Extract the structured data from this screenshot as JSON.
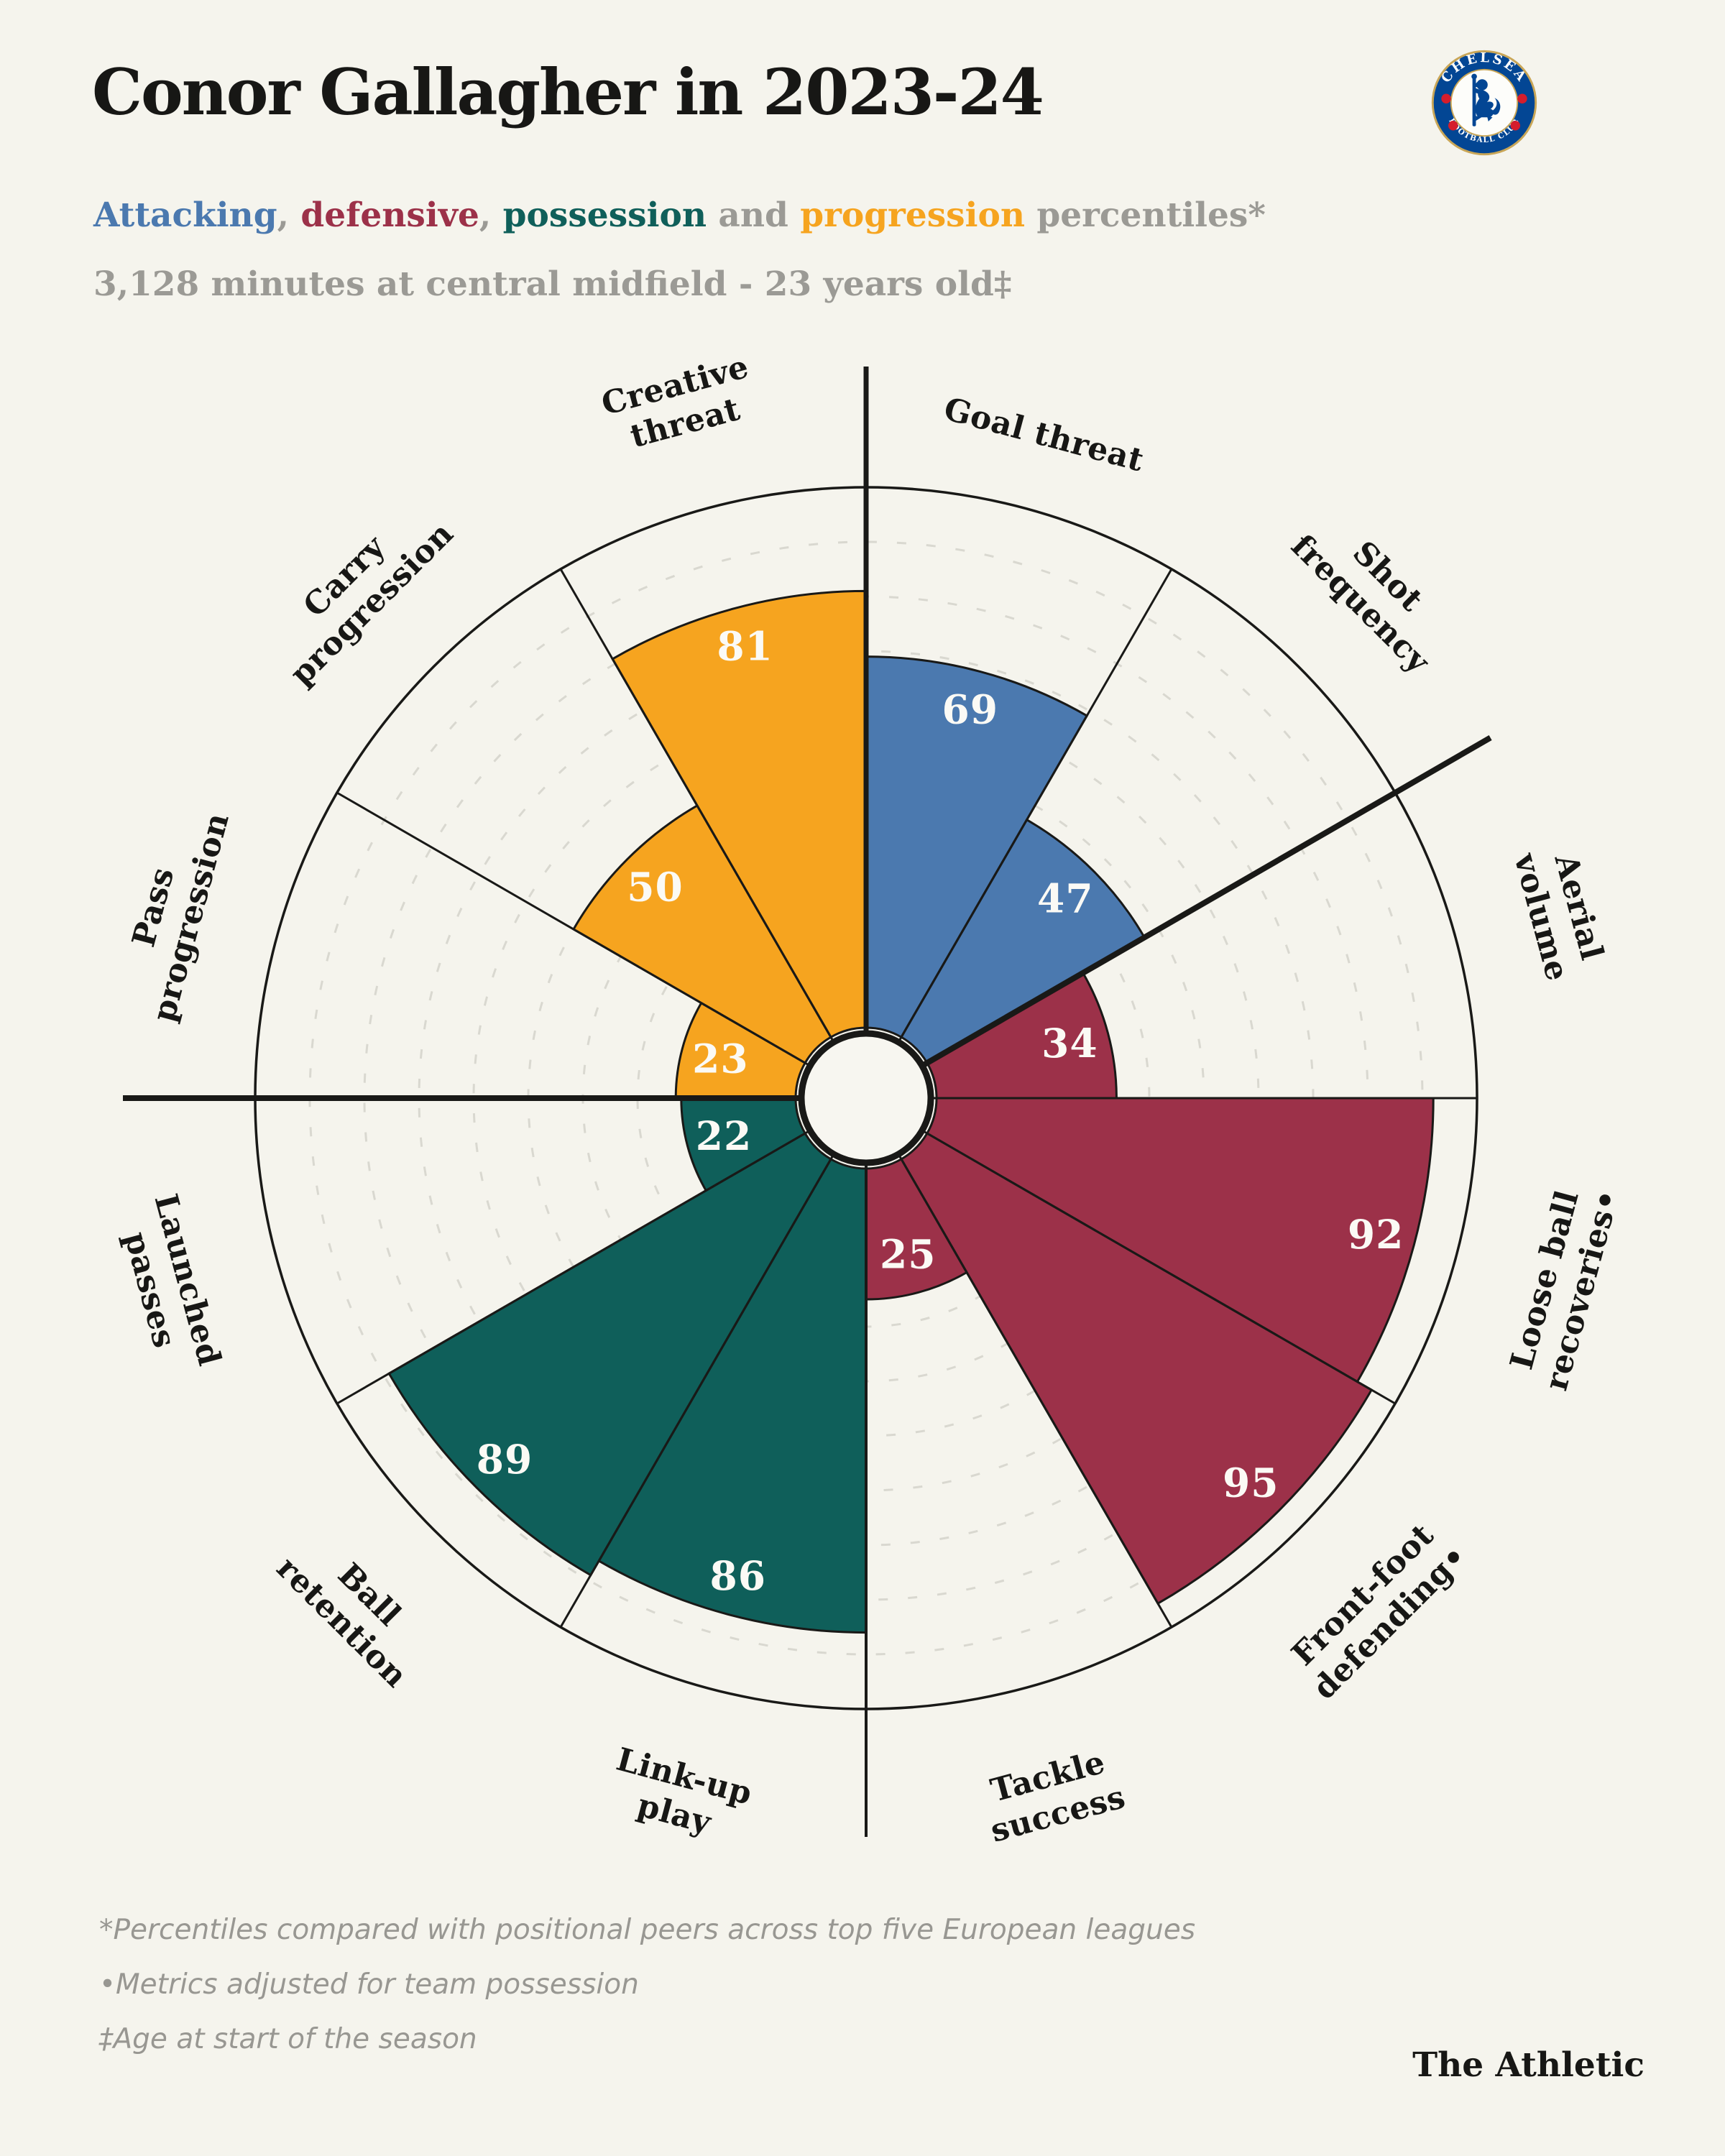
{
  "header": {
    "title": "Conor Gallagher in 2023-24",
    "subtitle_segments": [
      {
        "text": "Attacking",
        "color": "#4b79af"
      },
      {
        "text": ", ",
        "color": "#9b9a95"
      },
      {
        "text": "defensive",
        "color": "#9c3149"
      },
      {
        "text": ", ",
        "color": "#9b9a95"
      },
      {
        "text": "possession",
        "color": "#0f5f5a"
      },
      {
        "text": " and ",
        "color": "#9b9a95"
      },
      {
        "text": "progression",
        "color": "#f6a41f"
      },
      {
        "text": " percentiles*",
        "color": "#9b9a95"
      }
    ],
    "subline": "3,128 minutes at central midfield - 23 years old‡",
    "badge": {
      "top_text": "CHELSEA",
      "bottom_text": "FOOTBALL CLUB"
    }
  },
  "chart_data": {
    "type": "pie",
    "subtype": "pizza-percentile",
    "unit": "percentile",
    "value_range": [
      0,
      100
    ],
    "gridlines": {
      "step": 10,
      "from": 10,
      "to": 90,
      "style": "dashed"
    },
    "groups": [
      {
        "name": "Attacking",
        "color": "#4b79af"
      },
      {
        "name": "Defensive",
        "color": "#9c3149"
      },
      {
        "name": "Possession",
        "color": "#0f5f5a"
      },
      {
        "name": "Progression",
        "color": "#f6a41f"
      }
    ],
    "slices": [
      {
        "label_lines": [
          "Goal threat"
        ],
        "value": 69,
        "group": 0
      },
      {
        "label_lines": [
          "Shot",
          "frequency"
        ],
        "value": 47,
        "group": 0
      },
      {
        "label_lines": [
          "Aerial",
          "volume"
        ],
        "value": 34,
        "group": 1
      },
      {
        "label_lines": [
          "Loose ball",
          "recoveries•"
        ],
        "value": 92,
        "group": 1
      },
      {
        "label_lines": [
          "Front-foot",
          "defending•"
        ],
        "value": 95,
        "group": 1
      },
      {
        "label_lines": [
          "Tackle",
          "success"
        ],
        "value": 25,
        "group": 1
      },
      {
        "label_lines": [
          "Link-up",
          "play"
        ],
        "value": 86,
        "group": 2
      },
      {
        "label_lines": [
          "Ball",
          "retention"
        ],
        "value": 89,
        "group": 2
      },
      {
        "label_lines": [
          "Launched",
          "passes"
        ],
        "value": 22,
        "group": 2
      },
      {
        "label_lines": [
          "Pass",
          "progression"
        ],
        "value": 23,
        "group": 3
      },
      {
        "label_lines": [
          "Carry",
          "progression"
        ],
        "value": 50,
        "group": 3
      },
      {
        "label_lines": [
          "Creative",
          "threat"
        ],
        "value": 81,
        "group": 3
      }
    ]
  },
  "footnotes": [
    "*Percentiles compared with positional peers across top five European leagues",
    "•Metrics adjusted for team possession",
    "‡Age at start of the season"
  ],
  "branding": "The Athletic",
  "colors": {
    "background": "#f5f4ed",
    "ink": "#191917",
    "grid": "#d9d8d0",
    "muted_text": "#9b9a95",
    "hole_fill": "#f7f6f0",
    "value_text": "#fbfaf5",
    "badge_blue": "#034694",
    "badge_gold": "#c9a657",
    "badge_red": "#d51d2c"
  }
}
